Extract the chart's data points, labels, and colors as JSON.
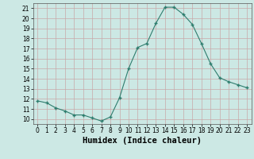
{
  "x": [
    0,
    1,
    2,
    3,
    4,
    5,
    6,
    7,
    8,
    9,
    10,
    11,
    12,
    13,
    14,
    15,
    16,
    17,
    18,
    19,
    20,
    21,
    22,
    23
  ],
  "y": [
    11.8,
    11.6,
    11.1,
    10.8,
    10.4,
    10.4,
    10.1,
    9.8,
    10.2,
    12.1,
    15.0,
    17.1,
    17.5,
    19.5,
    21.1,
    21.1,
    20.4,
    19.4,
    17.5,
    15.5,
    14.1,
    13.7,
    13.4,
    13.1
  ],
  "xlabel": "Humidex (Indice chaleur)",
  "xlim": [
    -0.5,
    23.5
  ],
  "ylim": [
    9.5,
    21.5
  ],
  "yticks": [
    10,
    11,
    12,
    13,
    14,
    15,
    16,
    17,
    18,
    19,
    20,
    21
  ],
  "xticks": [
    0,
    1,
    2,
    3,
    4,
    5,
    6,
    7,
    8,
    9,
    10,
    11,
    12,
    13,
    14,
    15,
    16,
    17,
    18,
    19,
    20,
    21,
    22,
    23
  ],
  "line_color": "#2e7d6e",
  "marker_color": "#2e7d6e",
  "bg_color": "#cce8e4",
  "grid_color": "#b0ceca",
  "xlabel_fontsize": 7.5,
  "tick_fontsize": 5.5
}
